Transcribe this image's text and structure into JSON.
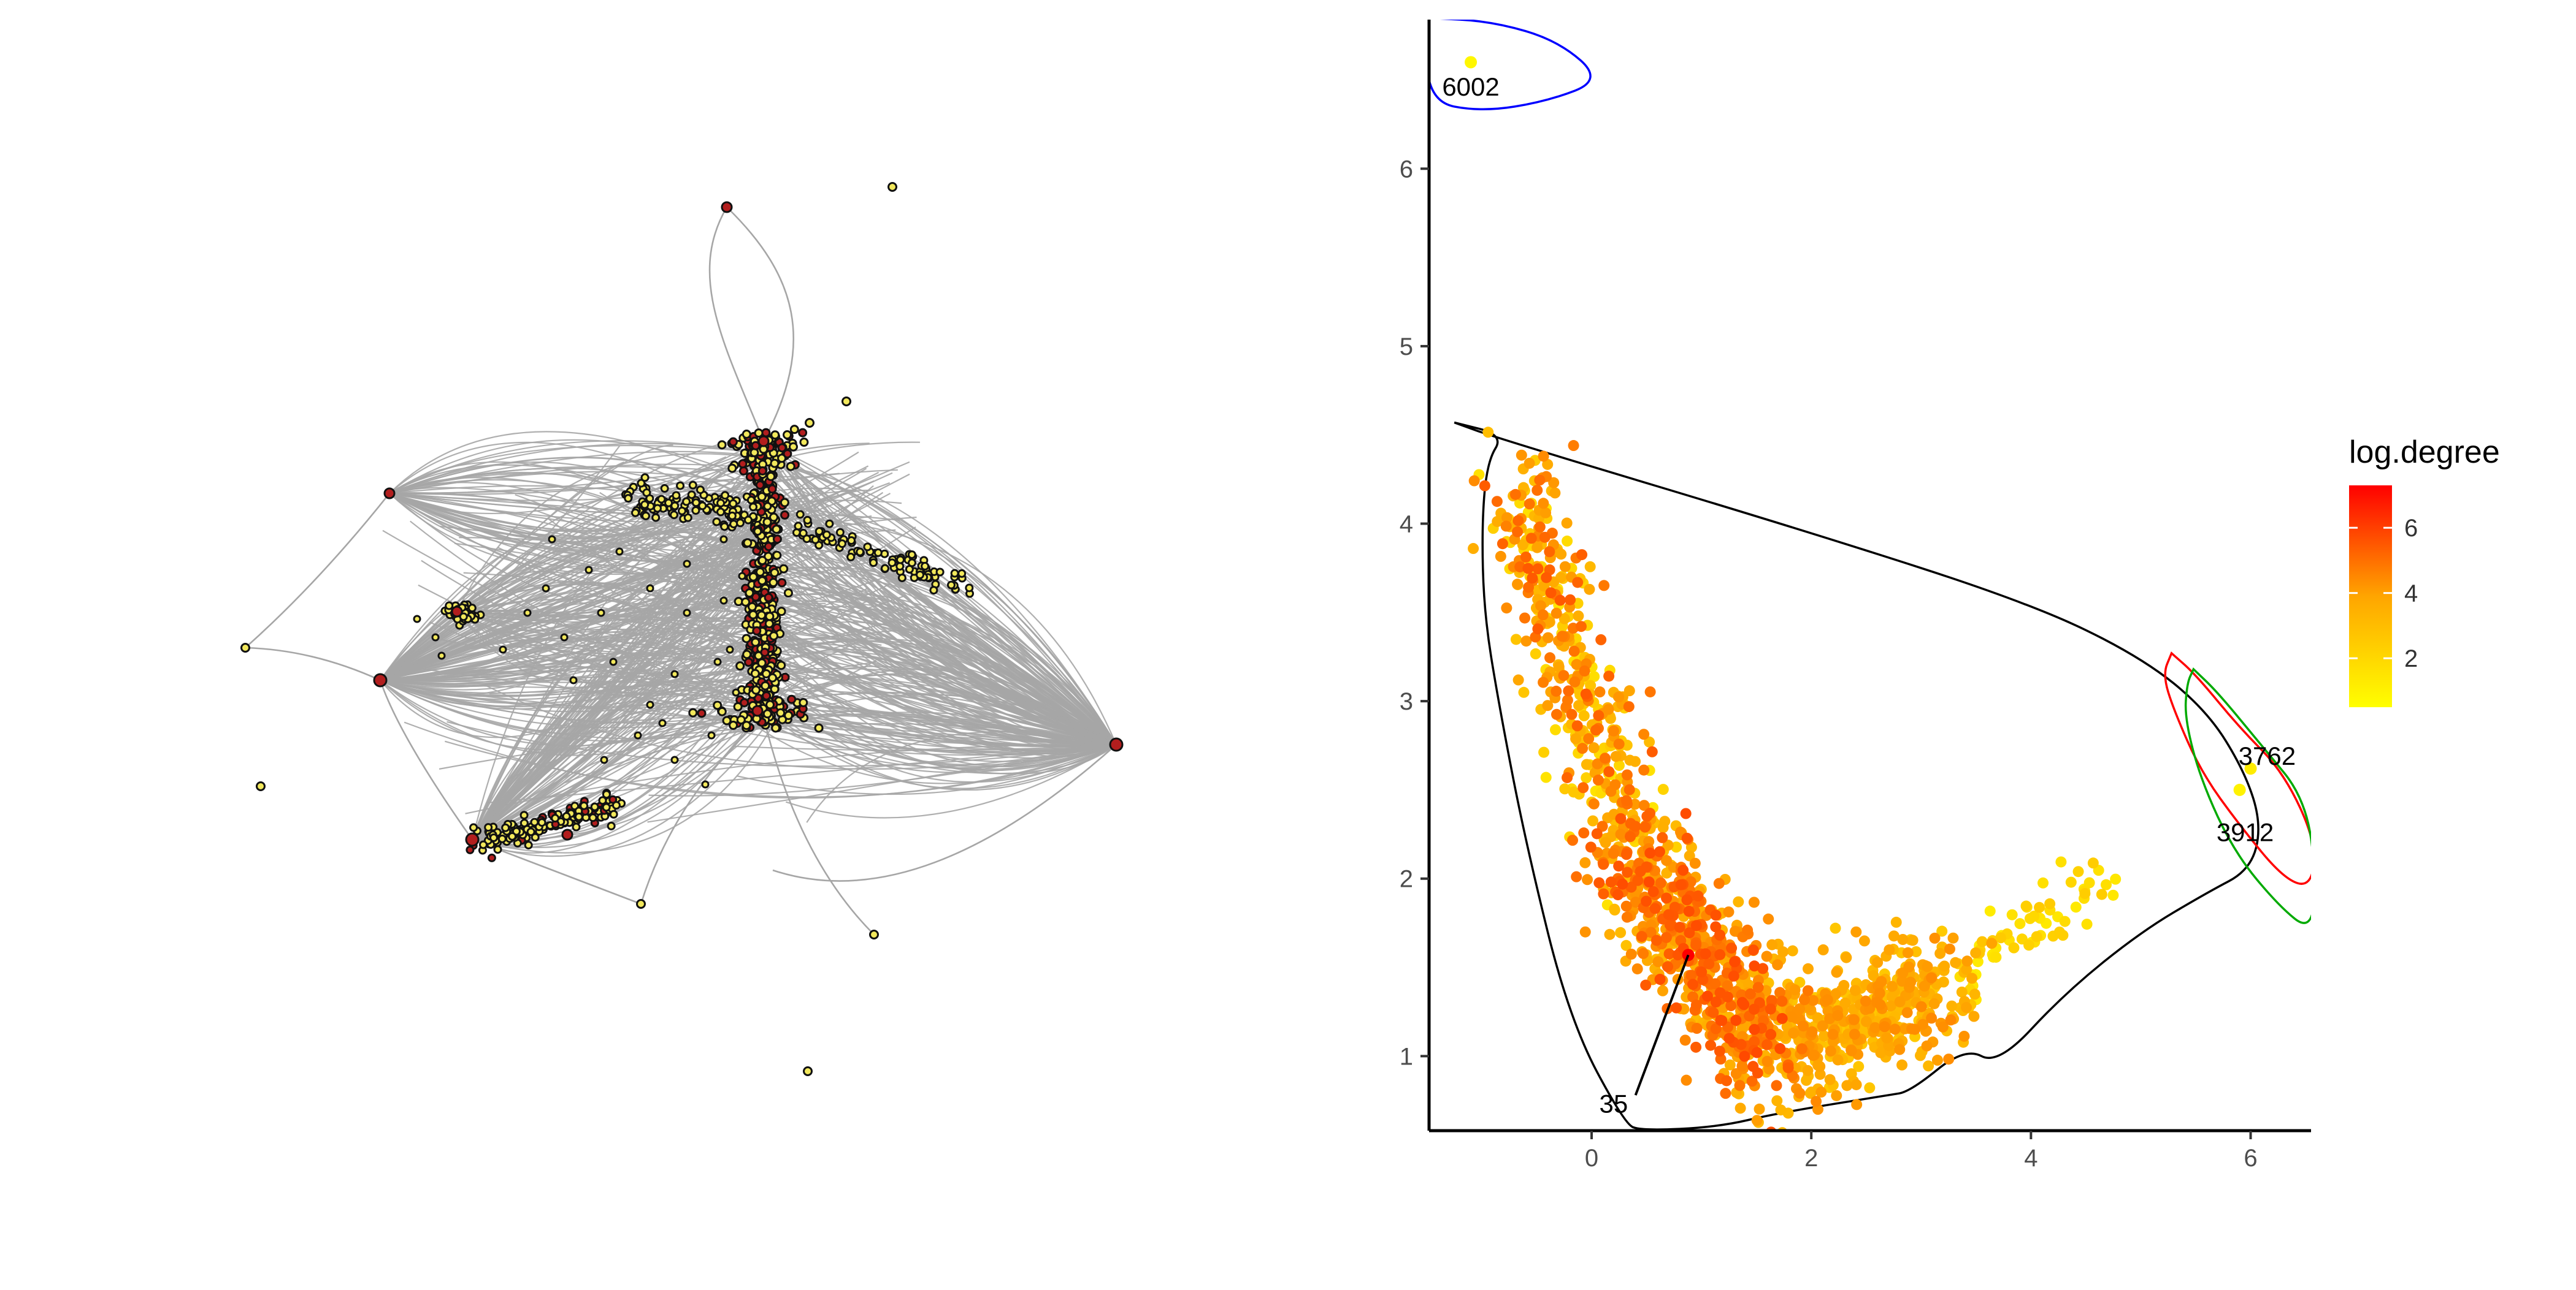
{
  "network": {
    "edge_color": "#a6a6a6",
    "node_fill": "#f2e85c",
    "node_stroke": "#111111",
    "hub_fill": "#b21e1e"
  },
  "chart_data": {
    "type": "scatter",
    "title": "",
    "xlabel": "",
    "ylabel": "",
    "xlim": [
      -1.48,
      6.55
    ],
    "ylim": [
      0.58,
      6.84
    ],
    "xticks": [
      "0",
      "2",
      "4",
      "6"
    ],
    "yticks": [
      "1",
      "2",
      "3",
      "4",
      "5",
      "6"
    ],
    "xtick_values": [
      0,
      2,
      4,
      6
    ],
    "ytick_values": [
      1,
      2,
      3,
      4,
      5,
      6
    ],
    "grid": false,
    "legend": {
      "title": "log.degree",
      "position": "right",
      "range": [
        0.5,
        7.3
      ],
      "ticks": [
        "2",
        "4",
        "6"
      ],
      "tick_values": [
        2,
        4,
        6
      ],
      "colors": [
        "#ffff00",
        "#ffa500",
        "#ff0000"
      ]
    },
    "annotations": [
      {
        "label": "6002",
        "x": -1.1,
        "y": 6.45,
        "point_x": -1.1,
        "point_y": 6.6,
        "log_degree": 0.8
      },
      {
        "label": "3762",
        "x": 6.15,
        "y": 2.68,
        "point_x": 6.0,
        "point_y": 2.62,
        "log_degree": 1.2
      },
      {
        "label": "3912",
        "x": 5.95,
        "y": 2.25,
        "point_x": 5.9,
        "point_y": 2.5,
        "log_degree": 1.0
      },
      {
        "label": "35",
        "x": 0.2,
        "y": 0.72,
        "point_x": 0.88,
        "point_y": 1.57,
        "log_degree": 7.3
      }
    ],
    "contours": [
      {
        "color": "#0000ff",
        "points": [
          [
            -1.5,
            6.85
          ],
          [
            -0.9,
            6.83
          ],
          [
            -0.3,
            6.72
          ],
          [
            0.1,
            6.5
          ],
          [
            -0.4,
            6.38
          ],
          [
            -1.0,
            6.32
          ],
          [
            -1.5,
            6.38
          ]
        ]
      },
      {
        "color": "#000000",
        "points": [
          [
            -1.25,
            4.57
          ],
          [
            -0.85,
            4.48
          ],
          [
            2.0,
            3.95
          ],
          [
            4.0,
            3.55
          ],
          [
            5.0,
            3.25
          ],
          [
            5.6,
            2.95
          ],
          [
            5.95,
            2.6
          ],
          [
            6.1,
            2.3
          ],
          [
            6.0,
            2.05
          ],
          [
            5.6,
            1.92
          ],
          [
            5.0,
            1.7
          ],
          [
            4.3,
            1.35
          ],
          [
            3.7,
            0.95
          ],
          [
            3.4,
            1.05
          ],
          [
            2.9,
            0.8
          ],
          [
            2.7,
            0.78
          ],
          [
            1.7,
            0.68
          ],
          [
            1.15,
            0.6
          ],
          [
            0.45,
            0.58
          ],
          [
            0.3,
            0.62
          ],
          [
            -0.2,
            1.2
          ],
          [
            -0.6,
            2.2
          ],
          [
            -0.85,
            3.0
          ],
          [
            -0.98,
            3.5
          ],
          [
            -1.0,
            4.0
          ],
          [
            -0.95,
            4.35
          ],
          [
            -0.8,
            4.5
          ]
        ]
      },
      {
        "color": "#ff0000",
        "points": [
          [
            5.28,
            3.27
          ],
          [
            5.5,
            3.15
          ],
          [
            5.9,
            2.85
          ],
          [
            6.3,
            2.6
          ],
          [
            6.6,
            2.2
          ],
          [
            6.55,
            1.95
          ],
          [
            6.3,
            2.0
          ],
          [
            5.9,
            2.3
          ],
          [
            5.55,
            2.6
          ],
          [
            5.3,
            2.95
          ],
          [
            5.2,
            3.15
          ]
        ]
      },
      {
        "color": "#00aa00",
        "points": [
          [
            5.48,
            3.18
          ],
          [
            5.7,
            3.05
          ],
          [
            6.1,
            2.75
          ],
          [
            6.5,
            2.45
          ],
          [
            6.6,
            2.0
          ],
          [
            6.55,
            1.7
          ],
          [
            6.25,
            1.85
          ],
          [
            5.85,
            2.15
          ],
          [
            5.55,
            2.55
          ],
          [
            5.4,
            2.9
          ],
          [
            5.42,
            3.1
          ]
        ]
      }
    ],
    "point_clouds": [
      {
        "name": "",
        "x_from": -0.7,
        "x_to": 0.4,
        "y_from": 4.2,
        "y_to": 2.1,
        "spread_x": 0.18,
        "spread_y": 0.18,
        "count": 420,
        "log_degree_from": 1.5,
        "log_degree_to": 5.5
      },
      {
        "name": "",
        "x_from": 0.4,
        "x_to": 1.6,
        "y_from": 2.1,
        "y_to": 1.05,
        "spread_x": 0.22,
        "spread_y": 0.18,
        "count": 600,
        "log_degree_from": 3.0,
        "log_degree_to": 5.8
      },
      {
        "name": "",
        "x_from": 1.6,
        "x_to": 3.3,
        "y_from": 1.05,
        "y_to": 1.4,
        "spread_x": 0.25,
        "spread_y": 0.18,
        "count": 480,
        "log_degree_from": 2.5,
        "log_degree_to": 4.5
      },
      {
        "name": "",
        "x_from": 3.3,
        "x_to": 4.6,
        "y_from": 1.4,
        "y_to": 2.0,
        "spread_x": 0.12,
        "spread_y": 0.1,
        "count": 60,
        "log_degree_from": 1.2,
        "log_degree_to": 2.5
      }
    ]
  }
}
